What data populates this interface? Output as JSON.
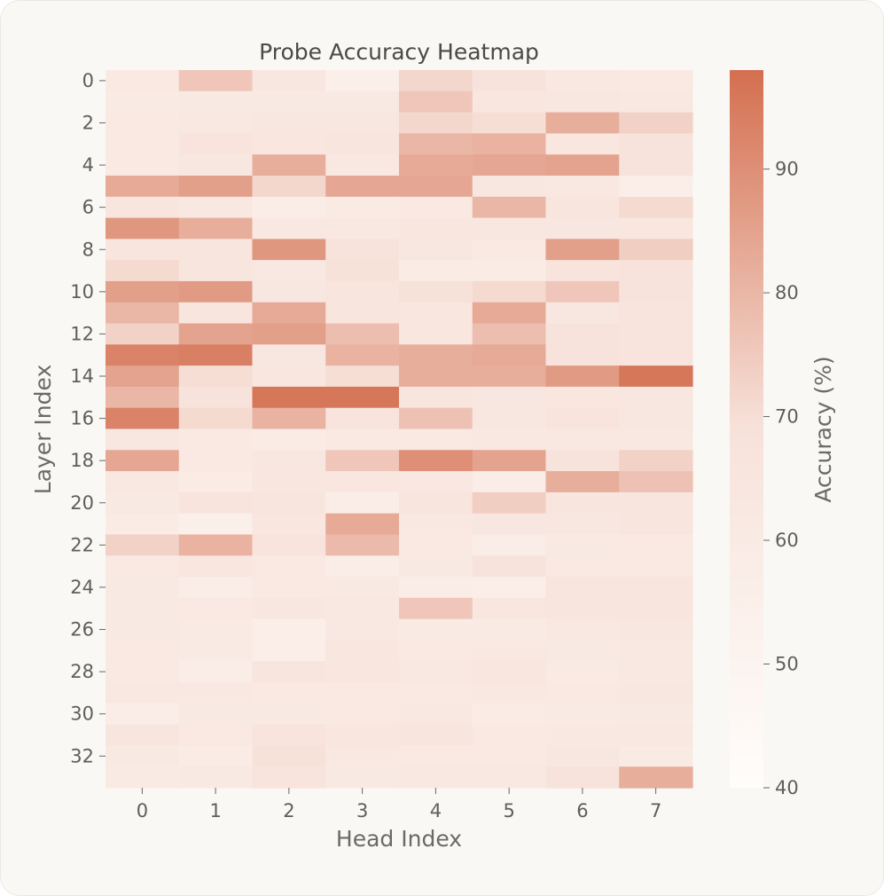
{
  "chart_data": {
    "type": "heatmap",
    "title": "Probe Accuracy Heatmap",
    "xlabel": "Head Index",
    "ylabel": "Layer Index",
    "x": [
      0,
      1,
      2,
      3,
      4,
      5,
      6,
      7
    ],
    "y": [
      0,
      1,
      2,
      3,
      4,
      5,
      6,
      7,
      8,
      9,
      10,
      11,
      12,
      13,
      14,
      15,
      16,
      17,
      18,
      19,
      20,
      21,
      22,
      23,
      24,
      25,
      26,
      27,
      28,
      29,
      30,
      31,
      32,
      33
    ],
    "x_ticks": [
      "0",
      "1",
      "2",
      "3",
      "4",
      "5",
      "6",
      "7"
    ],
    "y_ticks": [
      "0",
      "2",
      "4",
      "6",
      "8",
      "10",
      "12",
      "14",
      "16",
      "18",
      "20",
      "22",
      "24",
      "26",
      "28",
      "30",
      "32"
    ],
    "values": [
      [
        62,
        76,
        64,
        55,
        72,
        68,
        63,
        62
      ],
      [
        60,
        61,
        61,
        61,
        76,
        65,
        64,
        63
      ],
      [
        62,
        63,
        64,
        64,
        72,
        70,
        82,
        73
      ],
      [
        61,
        67,
        65,
        66,
        80,
        81,
        65,
        68
      ],
      [
        62,
        64,
        82,
        63,
        83,
        84,
        85,
        68
      ],
      [
        83,
        86,
        72,
        84,
        84,
        64,
        63,
        56
      ],
      [
        66,
        63,
        57,
        60,
        62,
        80,
        66,
        71
      ],
      [
        88,
        82,
        63,
        63,
        65,
        64,
        64,
        65
      ],
      [
        66,
        66,
        88,
        68,
        64,
        62,
        86,
        74
      ],
      [
        71,
        66,
        63,
        69,
        59,
        59,
        67,
        68
      ],
      [
        86,
        87,
        64,
        66,
        69,
        71,
        76,
        68
      ],
      [
        80,
        66,
        83,
        66,
        65,
        83,
        64,
        67
      ],
      [
        73,
        85,
        86,
        78,
        65,
        78,
        68,
        67
      ],
      [
        93,
        94,
        64,
        81,
        82,
        83,
        68,
        67
      ],
      [
        85,
        70,
        65,
        70,
        82,
        82,
        87,
        96
      ],
      [
        80,
        68,
        96,
        96,
        66,
        64,
        65,
        64
      ],
      [
        93,
        71,
        81,
        67,
        77,
        64,
        67,
        64
      ],
      [
        64,
        62,
        59,
        62,
        62,
        63,
        63,
        63
      ],
      [
        84,
        62,
        64,
        76,
        90,
        85,
        68,
        73
      ],
      [
        63,
        59,
        65,
        65,
        63,
        58,
        82,
        77
      ],
      [
        61,
        67,
        66,
        57,
        66,
        74,
        66,
        66
      ],
      [
        59,
        55,
        65,
        83,
        63,
        64,
        64,
        66
      ],
      [
        73,
        81,
        67,
        79,
        62,
        58,
        61,
        62
      ],
      [
        62,
        65,
        62,
        58,
        61,
        68,
        62,
        62
      ],
      [
        61,
        57,
        62,
        61,
        58,
        56,
        66,
        66
      ],
      [
        61,
        62,
        64,
        63,
        76,
        65,
        66,
        66
      ],
      [
        61,
        60,
        56,
        63,
        60,
        60,
        63,
        64
      ],
      [
        62,
        60,
        56,
        65,
        62,
        63,
        61,
        63
      ],
      [
        61,
        58,
        66,
        65,
        63,
        65,
        60,
        63
      ],
      [
        63,
        63,
        62,
        62,
        62,
        63,
        62,
        64
      ],
      [
        57,
        61,
        61,
        62,
        63,
        59,
        60,
        61
      ],
      [
        66,
        62,
        67,
        65,
        66,
        62,
        63,
        63
      ],
      [
        61,
        59,
        69,
        63,
        62,
        62,
        64,
        60
      ],
      [
        60,
        61,
        67,
        61,
        63,
        63,
        68,
        82
      ]
    ],
    "colorbar": {
      "label": "Accuracy (%)",
      "range": [
        40,
        98
      ],
      "ticks": [
        40,
        50,
        60,
        70,
        80,
        90
      ],
      "tick_labels": [
        "40",
        "50",
        "60",
        "70",
        "80",
        "90"
      ],
      "colors": [
        "#fffdfb",
        "#f7e2da",
        "#d46f50"
      ]
    },
    "grid": false
  }
}
